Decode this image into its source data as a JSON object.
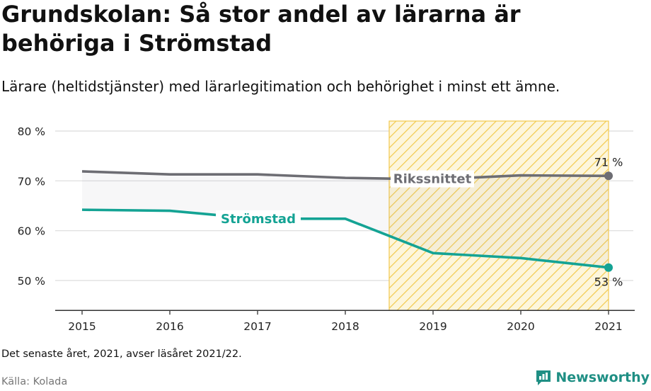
{
  "header": {
    "title": "Grundskolan: Så stor andel av lärarna är behöriga i Strömstad",
    "subtitle": "Lärare (heltidstjänster) med lärarlegitimation och behörighet i minst ett ämne."
  },
  "footer": {
    "note": "Det senaste året, 2021, avser läsåret 2021/22.",
    "source": "Källa: Kolada",
    "brand": "Newsworthy"
  },
  "colors": {
    "stromstad": "#14a394",
    "riket": "#6d6d73",
    "highlight": "#f2c94c"
  },
  "chart_data": {
    "type": "line",
    "x": [
      2015,
      2016,
      2017,
      2018,
      2019,
      2020,
      2021
    ],
    "ylim": [
      44,
      82
    ],
    "yticks": [
      50,
      60,
      70,
      80
    ],
    "ytick_labels": [
      "50 %",
      "60 %",
      "70 %",
      "80 %"
    ],
    "highlight_range": [
      2018.5,
      2021
    ],
    "series": [
      {
        "name": "Rikssnittet",
        "values": [
          71.9,
          71.3,
          71.3,
          70.6,
          70.3,
          71.1,
          71.0
        ],
        "end_label": "71 %"
      },
      {
        "name": "Strömstad",
        "values": [
          64.2,
          64.0,
          62.4,
          62.4,
          55.5,
          54.5,
          52.6
        ],
        "end_label": "53 %"
      }
    ]
  }
}
